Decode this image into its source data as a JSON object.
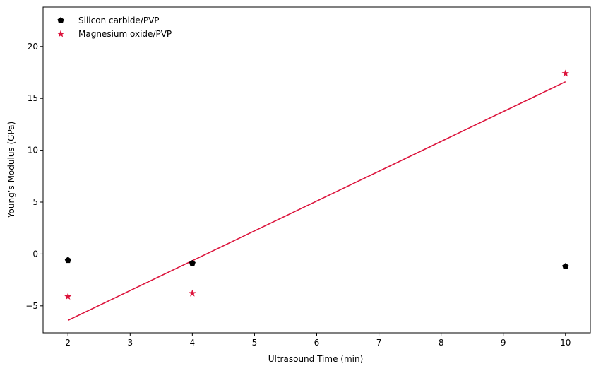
{
  "chart_data": {
    "type": "scatter",
    "xlabel": "Ultrasound Time (min)",
    "ylabel": "Young’s Modulus (GPa)",
    "xlim": [
      1.6,
      10.4
    ],
    "ylim": [
      -7.6,
      23.8
    ],
    "xticks": [
      2,
      3,
      4,
      5,
      6,
      7,
      8,
      9,
      10
    ],
    "yticks": [
      -5,
      0,
      5,
      10,
      15,
      20
    ],
    "ytick_labels": [
      "−5",
      "0",
      "5",
      "10",
      "15",
      "20"
    ],
    "grid": false,
    "legend_position": "top-left",
    "series": [
      {
        "name": "Silicon carbide/PVP",
        "marker": "pentagon",
        "color": "#000000",
        "x": [
          2,
          4,
          10
        ],
        "y": [
          -0.6,
          -0.9,
          -1.2
        ]
      },
      {
        "name": "Magnesium oxide/PVP",
        "marker": "star",
        "color": "#dc143c",
        "x": [
          2,
          4,
          10
        ],
        "y": [
          -4.1,
          -3.8,
          17.4
        ]
      }
    ],
    "fit_line": {
      "series": "Magnesium oxide/PVP",
      "color": "#dc143c",
      "x": [
        2,
        10
      ],
      "y": [
        -6.4,
        16.6
      ]
    }
  }
}
